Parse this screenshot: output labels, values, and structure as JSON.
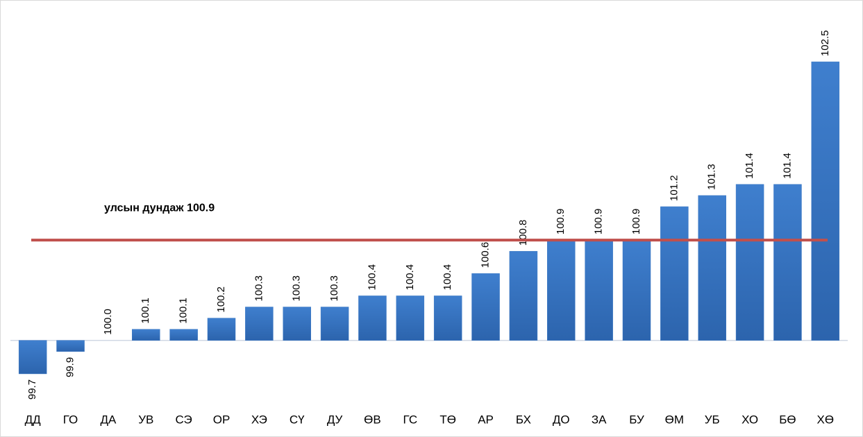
{
  "chart_data": {
    "type": "bar",
    "categories": [
      "ДД",
      "ГО",
      "ДА",
      "УВ",
      "СЭ",
      "ОР",
      "ХЭ",
      "СҮ",
      "ДУ",
      "ӨВ",
      "ГС",
      "ТӨ",
      "АР",
      "БХ",
      "ДО",
      "ЗА",
      "БУ",
      "ӨМ",
      "УБ",
      "ХО",
      "БӨ",
      "ХӨ"
    ],
    "values": [
      99.7,
      99.9,
      100.0,
      100.1,
      100.1,
      100.2,
      100.3,
      100.3,
      100.3,
      100.4,
      100.4,
      100.4,
      100.6,
      100.8,
      100.9,
      100.9,
      100.9,
      101.2,
      101.3,
      101.4,
      101.4,
      102.5
    ],
    "value_labels": [
      "99.7",
      "99.9",
      "100.0",
      "100.1",
      "100.1",
      "100.2",
      "100.3",
      "100.3",
      "100.3",
      "100.4",
      "100.4",
      "100.4",
      "100.6",
      "100.8",
      "100.9",
      "100.9",
      "100.9",
      "101.2",
      "101.3",
      "101.4",
      "101.4",
      "102.5"
    ],
    "color": "#3b78c4",
    "baseline": 100,
    "ylim": [
      99.6,
      102.6
    ],
    "reference_line": {
      "value": 100.9,
      "label": "улсын дундаж 100.9",
      "color": "#c0504d"
    }
  }
}
